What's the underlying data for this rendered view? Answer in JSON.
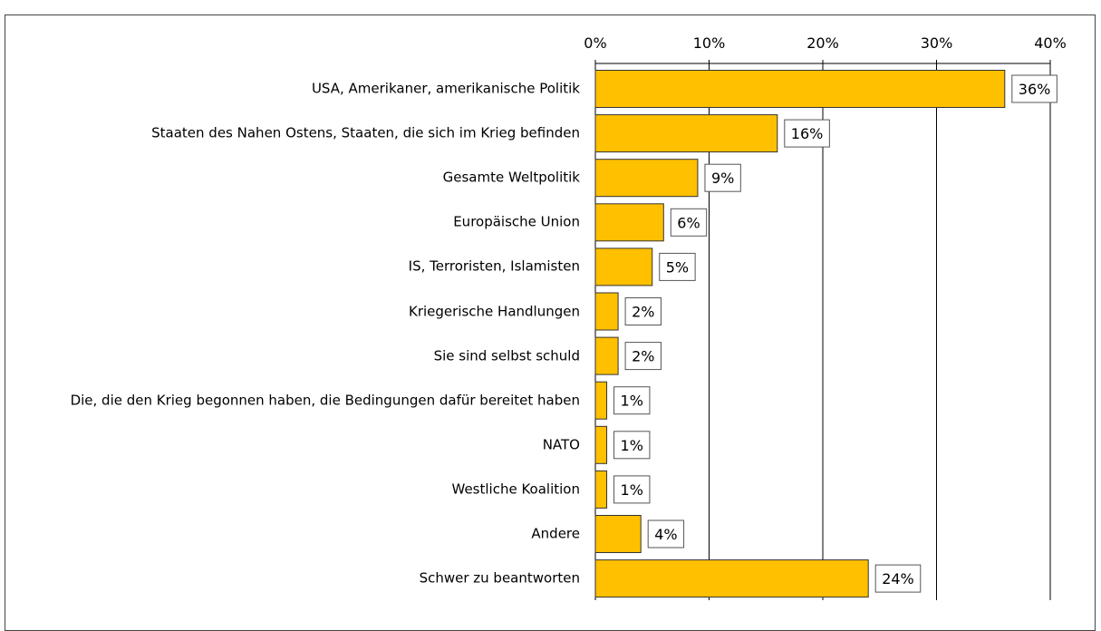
{
  "chart_data": {
    "type": "bar",
    "orientation": "horizontal",
    "categories": [
      "USA, Amerikaner, amerikanische Politik",
      "Staaten des Nahen Ostens, Staaten, die sich im Krieg befinden",
      "Gesamte Weltpolitik",
      "Europäische Union",
      "IS, Terroristen, Islamisten",
      "Kriegerische Handlungen",
      "Sie sind selbst schuld",
      "Die, die den Krieg begonnen haben, die Bedingungen dafür bereitet haben",
      "NATO",
      "Westliche Koalition",
      "Andere",
      "Schwer zu beantworten"
    ],
    "values": [
      36,
      16,
      9,
      6,
      5,
      2,
      2,
      1,
      1,
      1,
      4,
      24
    ],
    "value_labels": [
      "36%",
      "16%",
      "9%",
      "6%",
      "5%",
      "2%",
      "2%",
      "1%",
      "1%",
      "1%",
      "4%",
      "24%"
    ],
    "color": "#ffc000",
    "xlim": [
      0,
      40
    ],
    "xticks": [
      {
        "value": 0,
        "label": "0%"
      },
      {
        "value": 10,
        "label": "10%"
      },
      {
        "value": 20,
        "label": "20%"
      },
      {
        "value": 30,
        "label": "30%"
      },
      {
        "value": 40,
        "label": "40%"
      }
    ],
    "grid": true
  }
}
